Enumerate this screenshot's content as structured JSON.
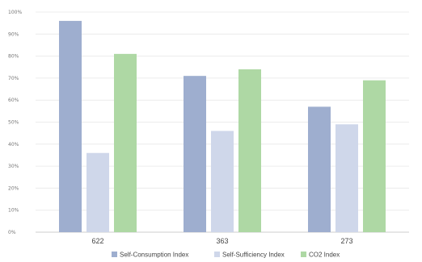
{
  "chart_data": {
    "type": "bar",
    "categories": [
      "622",
      "363",
      "273"
    ],
    "series": [
      {
        "name": "Self-Consumption Index",
        "color": "#9eaecf",
        "values": [
          96,
          71,
          57
        ]
      },
      {
        "name": "Self-Sufficiency Index",
        "color": "#cfd7ea",
        "values": [
          36,
          46,
          49
        ]
      },
      {
        "name": "CO2 Index",
        "color": "#aed8a4",
        "values": [
          81,
          74,
          69
        ]
      }
    ],
    "y_ticks": [
      "0%",
      "10%",
      "20%",
      "30%",
      "40%",
      "50%",
      "60%",
      "70%",
      "80%",
      "90%",
      "100%"
    ],
    "ylim": [
      0,
      100
    ],
    "grid": true,
    "legend_position": "bottom",
    "title": "",
    "xlabel": "",
    "ylabel": ""
  }
}
